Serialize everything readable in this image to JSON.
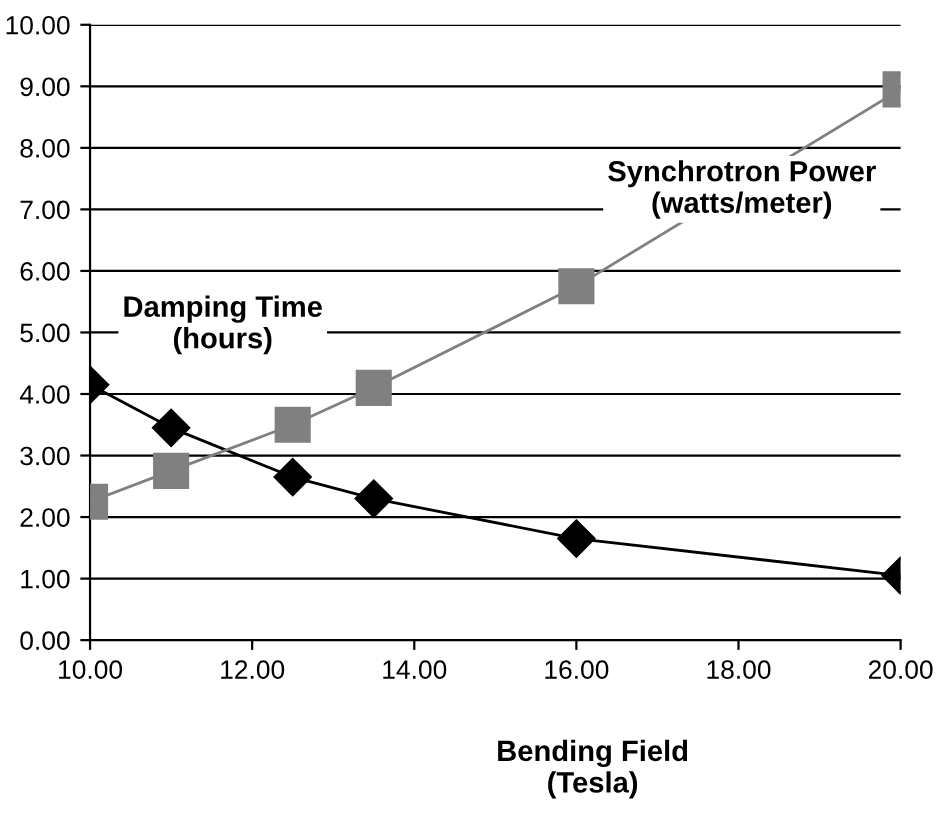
{
  "chart_data": {
    "type": "line",
    "xlabel": "Bending Field\n(Tesla)",
    "x": [
      10,
      11,
      12.5,
      13.5,
      16,
      20
    ],
    "series": [
      {
        "name": "Damping Time\n(hours)",
        "color": "#000000",
        "marker": "diamond",
        "values": [
          4.15,
          3.45,
          2.65,
          2.3,
          1.65,
          1.05
        ]
      },
      {
        "name": "Synchrotron Power\n(watts/meter)",
        "color": "#808080",
        "marker": "square",
        "values": [
          2.25,
          2.75,
          3.5,
          4.1,
          5.75,
          8.95
        ]
      }
    ],
    "xlim": [
      10,
      20
    ],
    "xticks": [
      {
        "value": 10,
        "label": "10.00"
      },
      {
        "value": 12,
        "label": "12.00"
      },
      {
        "value": 14,
        "label": "14.00"
      },
      {
        "value": 16,
        "label": "16.00"
      },
      {
        "value": 18,
        "label": "18.00"
      },
      {
        "value": 20,
        "label": "20.00"
      }
    ],
    "ylim": [
      0,
      10
    ],
    "yticks": [
      {
        "value": 0,
        "label": "0.00"
      },
      {
        "value": 1,
        "label": "1.00"
      },
      {
        "value": 2,
        "label": "2.00"
      },
      {
        "value": 3,
        "label": "3.00"
      },
      {
        "value": 4,
        "label": "4.00"
      },
      {
        "value": 5,
        "label": "5.00"
      },
      {
        "value": 6,
        "label": "6.00"
      },
      {
        "value": 7,
        "label": "7.00"
      },
      {
        "value": 8,
        "label": "8.00"
      },
      {
        "value": 9,
        "label": "9.00"
      },
      {
        "value": 10,
        "label": "10.00"
      }
    ],
    "grid": "y",
    "legend": false
  }
}
